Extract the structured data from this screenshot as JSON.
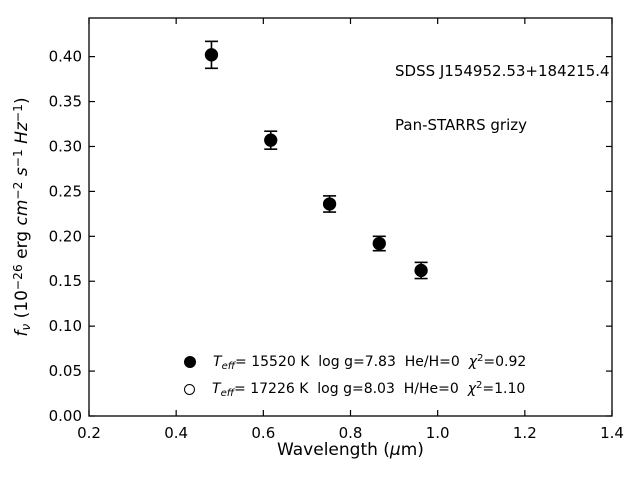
{
  "figure": {
    "background": "#ffffff",
    "foreground": "#000000"
  },
  "annotation": {
    "line1": "SDSS J154952.53+184215.4",
    "line2": "Pan-STARRS grizy"
  },
  "chart_data": {
    "type": "scatter",
    "title": "",
    "xlabel": "Wavelength (μm)",
    "ylabel": "f_ν (10^−26 erg cm^−2 s^−1 Hz^−1)",
    "xlabel_parts": [
      {
        "t": "Wavelength ("
      },
      {
        "t": "μ",
        "i": 1
      },
      {
        "t": "m)"
      }
    ],
    "ylabel_parts": [
      {
        "t": "f",
        "i": 1
      },
      {
        "t": "ν",
        "i": 1,
        "s": "sub"
      },
      {
        "t": " (10"
      },
      {
        "t": "−26",
        "s": "sup"
      },
      {
        "t": " erg "
      },
      {
        "t": "cm",
        "i": 1
      },
      {
        "t": "−2",
        "s": "sup"
      },
      {
        "t": " "
      },
      {
        "t": "s",
        "i": 1
      },
      {
        "t": "−1",
        "s": "sup"
      },
      {
        "t": " "
      },
      {
        "t": "Hz",
        "i": 1
      },
      {
        "t": "−1",
        "s": "sup"
      },
      {
        "t": ")"
      }
    ],
    "xlim": [
      0.2,
      1.4
    ],
    "ylim": [
      0.0,
      0.443
    ],
    "xticks": [
      0.2,
      0.4,
      0.6,
      0.8,
      1.0,
      1.2,
      1.4
    ],
    "xtick_labels": [
      "0.2",
      "0.4",
      "0.6",
      "0.8",
      "1.0",
      "1.2",
      "1.4"
    ],
    "yticks": [
      0.0,
      0.05,
      0.1,
      0.15,
      0.2,
      0.25,
      0.3,
      0.35,
      0.4
    ],
    "ytick_labels": [
      "0.00",
      "0.05",
      "0.10",
      "0.15",
      "0.20",
      "0.25",
      "0.30",
      "0.35",
      "0.40"
    ],
    "grid": false,
    "tick_direction": "in",
    "series": [
      {
        "name": "Teff= 15520 K log g=7.83 He/H=0 χ2=0.92",
        "marker": "filled-circle",
        "color": "#000000",
        "x": [
          0.481,
          0.617,
          0.752,
          0.866,
          0.962
        ],
        "y": [
          0.402,
          0.307,
          0.236,
          0.192,
          0.162
        ],
        "yerr": [
          0.015,
          0.01,
          0.009,
          0.008,
          0.009
        ]
      }
    ],
    "legend": {
      "frame": false,
      "position": "lower left",
      "rows": [
        {
          "marker": "filled-circle",
          "label": "Teff= 15520 K  log g=7.83  He/H=0  χ2=0.92",
          "parts": [
            {
              "t": "T",
              "i": 1
            },
            {
              "t": "eff",
              "i": 1,
              "s": "sub"
            },
            {
              "t": "= 15520 K  log g=7.83  He/H=0  "
            },
            {
              "t": "χ",
              "i": 1
            },
            {
              "t": "2",
              "s": "sup"
            },
            {
              "t": "=0.92"
            }
          ]
        },
        {
          "marker": "open-circle",
          "label": "Teff= 17226 K  log g=8.03  H/He=0  χ2=1.10",
          "parts": [
            {
              "t": "T",
              "i": 1
            },
            {
              "t": "eff",
              "i": 1,
              "s": "sub"
            },
            {
              "t": "= 17226 K  log g=8.03  H/He=0  "
            },
            {
              "t": "χ",
              "i": 1
            },
            {
              "t": "2",
              "s": "sup"
            },
            {
              "t": "=1.10"
            }
          ]
        }
      ]
    }
  }
}
